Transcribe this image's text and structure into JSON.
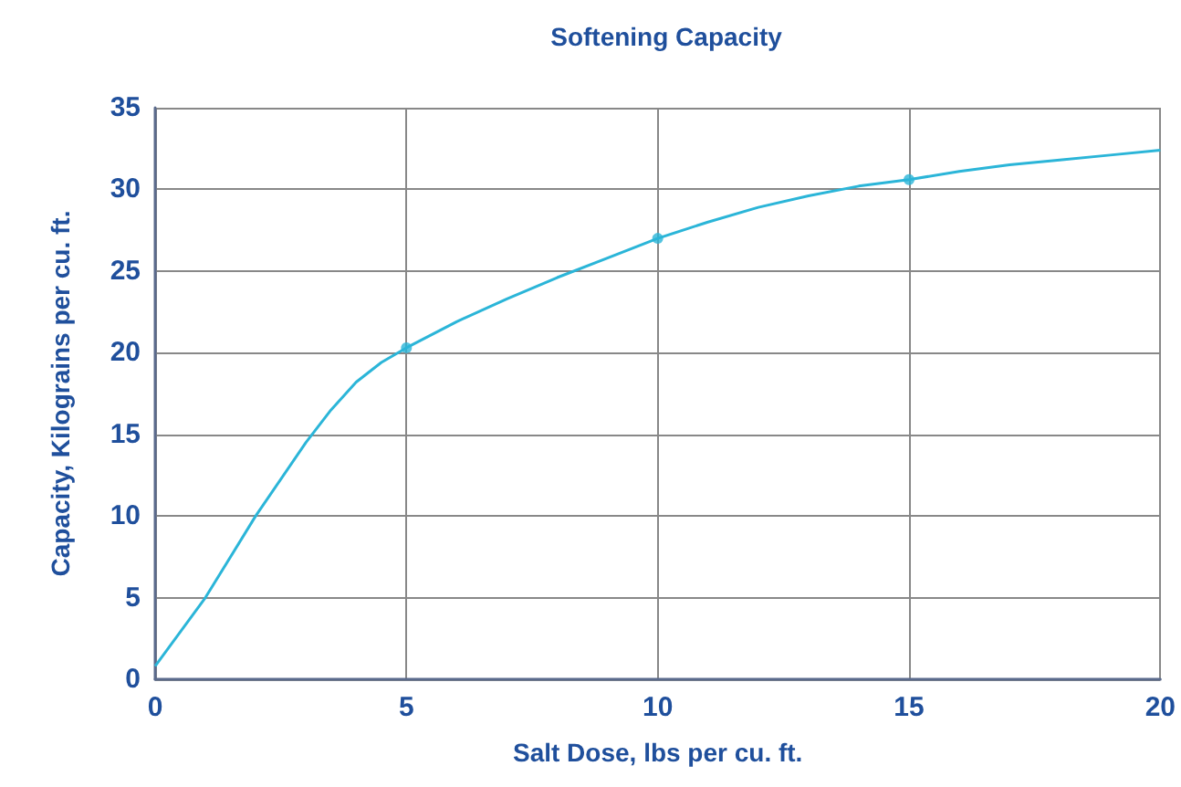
{
  "chart_data": {
    "type": "line",
    "title": "Softening Capacity",
    "xlabel": "Salt Dose, lbs per cu. ft.",
    "ylabel": "Capacity, Kilograins per cu. ft.",
    "xlim": [
      0,
      20
    ],
    "xticks": [
      0,
      5,
      10,
      15,
      20
    ],
    "ylim": [
      0,
      35
    ],
    "yticks": [
      0,
      5,
      10,
      15,
      20,
      25,
      30,
      35
    ],
    "grid": true,
    "series": [
      {
        "marker": "none",
        "color": "#2bb5d8",
        "x": [
          0,
          1,
          2,
          3,
          3.5,
          4,
          4.5,
          5,
          6,
          7,
          8,
          9,
          10,
          11,
          12,
          13,
          14,
          15,
          16,
          17,
          18,
          19,
          20
        ],
        "values": [
          0.8,
          5,
          10,
          14.5,
          16.5,
          18.2,
          19.4,
          20.3,
          21.9,
          23.3,
          24.6,
          25.8,
          27,
          28,
          28.9,
          29.6,
          30.2,
          30.6,
          31.1,
          31.5,
          31.8,
          32.1,
          32.4
        ]
      },
      {
        "type": "scatter",
        "marker": "circle",
        "color": "#2bb5d8",
        "x": [
          5,
          10,
          15
        ],
        "values": [
          20.3,
          27,
          30.6
        ]
      }
    ]
  }
}
